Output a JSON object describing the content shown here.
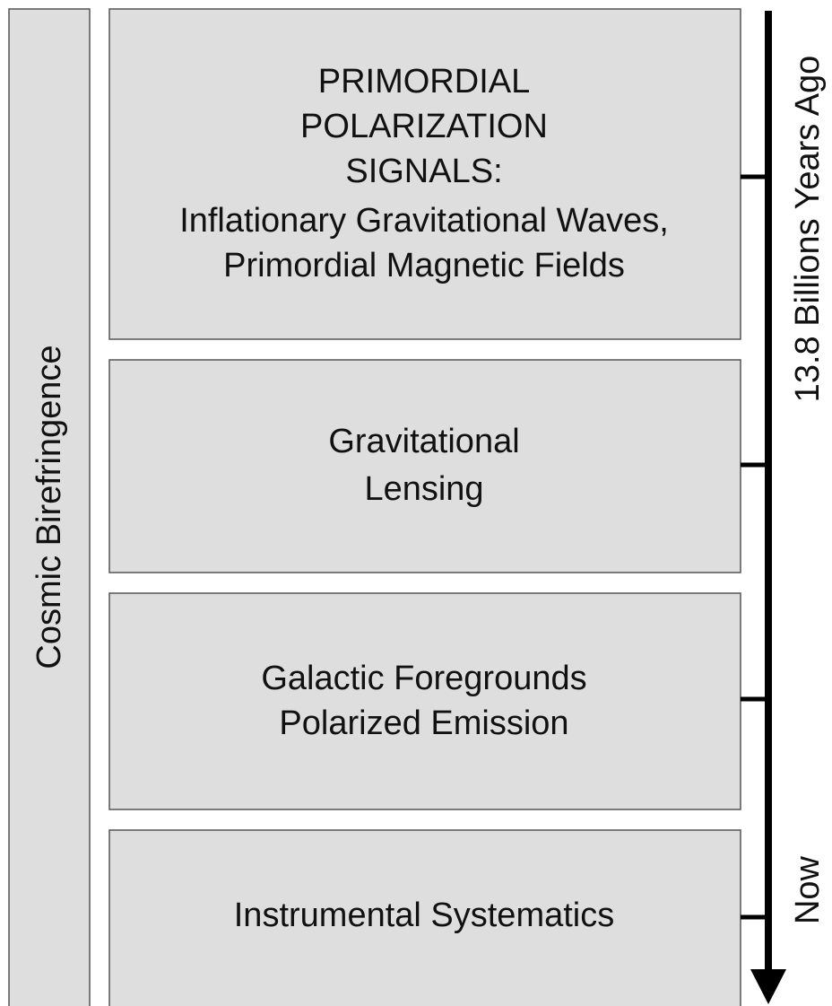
{
  "side_label": "Cosmic Birefringence",
  "boxes": [
    {
      "lines": [
        "PRIMORDIAL",
        "POLARIZATION",
        "SIGNALS:",
        "Inflationary Gravitational Waves,",
        "Primordial Magnetic Fields"
      ]
    },
    {
      "lines": [
        "Gravitational",
        "Lensing"
      ]
    },
    {
      "lines": [
        "Galactic Foregrounds",
        "Polarized Emission"
      ]
    },
    {
      "lines": [
        "Instrumental Systematics"
      ]
    }
  ],
  "timeline": {
    "start_label": "13.8 Billions Years Ago",
    "end_label": "Now"
  }
}
